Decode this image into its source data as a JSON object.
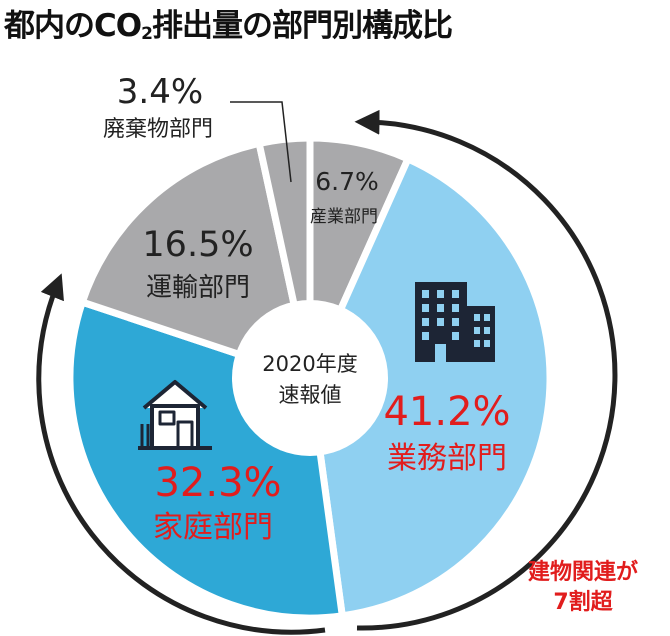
{
  "title": {
    "main": "都内のCO",
    "subscript": "2",
    "rest": "排出量の部門別構成比"
  },
  "center_label": {
    "line1": "2020年度",
    "line2": "速報値"
  },
  "note": {
    "line1": "建物関連が",
    "line2": "7割超"
  },
  "colors": {
    "gray": "#a9a9ab",
    "light_blue": "#8fd0f1",
    "blue": "#2ea8d6",
    "red": "#e11d1d",
    "dark": "#222222"
  },
  "icons": [
    "office-building-icon",
    "house-icon",
    "circular-arrow-icon"
  ],
  "chart_data": {
    "type": "pie",
    "title": "都内のCO2排出量の部門別構成比",
    "subtitle": "2020年度速報値",
    "unit": "%",
    "slices": [
      {
        "label": "産業部門",
        "value": 6.7,
        "value_text": "6.7%",
        "color": "#a9a9ab"
      },
      {
        "label": "業務部門",
        "value": 41.2,
        "value_text": "41.2%",
        "color": "#8fd0f1"
      },
      {
        "label": "家庭部門",
        "value": 32.3,
        "value_text": "32.3%",
        "color": "#2ea8d6"
      },
      {
        "label": "運輸部門",
        "value": 16.5,
        "value_text": "16.5%",
        "color": "#a9a9ab"
      },
      {
        "label": "廃棄物部門",
        "value": 3.4,
        "value_text": "3.4%",
        "color": "#a9a9ab"
      }
    ],
    "donut": true,
    "annotation": "建物関連が7割超"
  }
}
